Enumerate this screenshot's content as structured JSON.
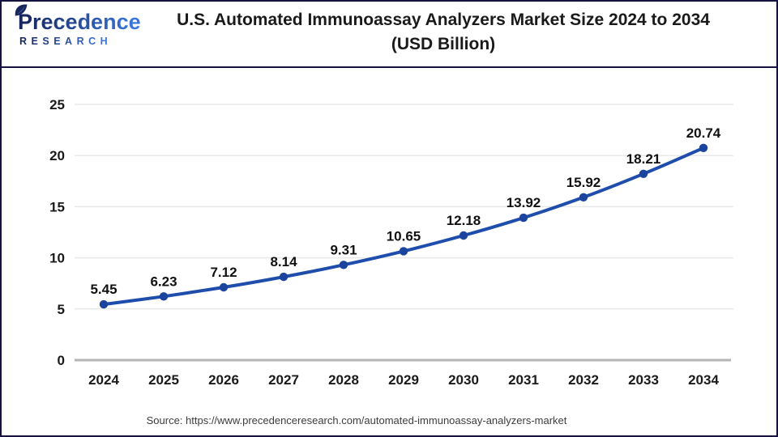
{
  "logo": {
    "brand": "Precedence",
    "subtitle": "RESEARCH"
  },
  "header": {
    "title_line1": "U.S. Automated Immunoassay Analyzers Market Size 2024 to 2034",
    "title_line2": "(USD Billion)"
  },
  "source_text": "Source: https://www.precedenceresearch.com/automated-immunoassay-analyzers-market",
  "chart_data": {
    "type": "line",
    "title": "U.S. Automated Immunoassay Analyzers Market Size 2024 to 2034 (USD Billion)",
    "categories": [
      "2024",
      "2025",
      "2026",
      "2027",
      "2028",
      "2029",
      "2030",
      "2031",
      "2032",
      "2033",
      "2034"
    ],
    "series": [
      {
        "name": "U.S. Automated Immunoassay Analyzers Market Size (USD Billion)",
        "values": [
          5.45,
          6.23,
          7.12,
          8.14,
          9.31,
          10.65,
          12.18,
          13.92,
          15.92,
          18.21,
          20.74
        ]
      }
    ],
    "xlabel": "",
    "ylabel": "",
    "ylim": [
      0,
      25
    ],
    "yticks": [
      0,
      5,
      10,
      15,
      20,
      25
    ],
    "grid": true,
    "legend_position": "none",
    "data_labels": true,
    "smooth": true,
    "colors": {
      "line": "#1f4dab",
      "marker": "#1b449e",
      "grid": "#e9e9e9",
      "axis": "#b5b5b5",
      "tick_text": "#1a1a1a",
      "label_text": "#111111"
    }
  },
  "colors": {
    "border": "#15123f",
    "brand_navy": "#17265e",
    "brand_blue": "#3b76dc",
    "leaf_accent": "#7ea9e8",
    "title_text": "#1a1a1a",
    "source_text": "#3d3d3d"
  }
}
